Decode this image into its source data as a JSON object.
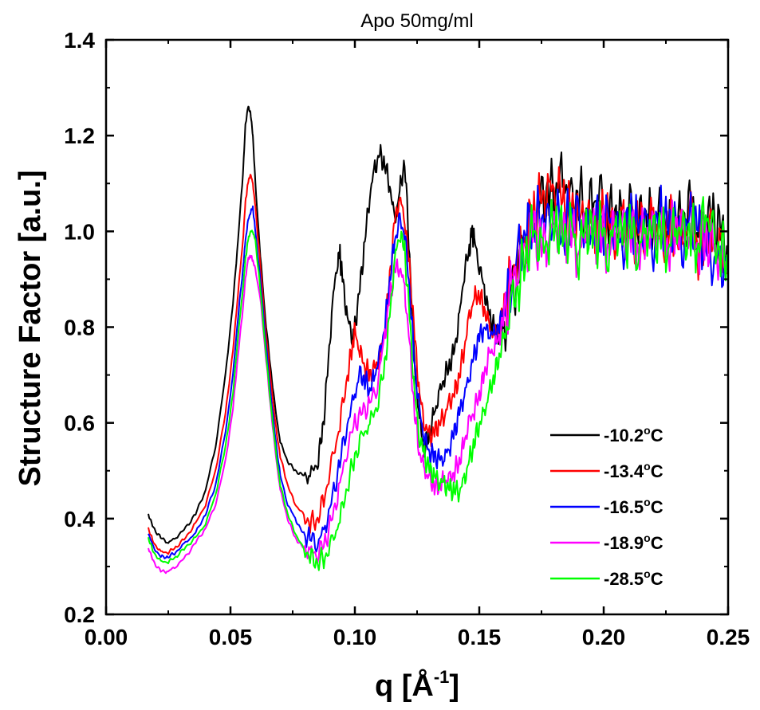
{
  "chart_data": {
    "type": "line",
    "title": "Apo 50mg/ml",
    "xlabel": {
      "base": "q [Å",
      "sup": "-1",
      "close": "]"
    },
    "ylabel": "Structure Factor [a.u.]",
    "xlim": [
      0.0,
      0.25
    ],
    "ylim": [
      0.2,
      1.4
    ],
    "xticks": [
      0.0,
      0.05,
      0.1,
      0.15,
      0.2,
      0.25
    ],
    "xtick_labels": [
      "0.00",
      "0.05",
      "0.10",
      "0.15",
      "0.20",
      "0.25"
    ],
    "yticks": [
      0.2,
      0.4,
      0.6,
      0.8,
      1.0,
      1.2,
      1.4
    ],
    "ytick_labels": [
      "0.2",
      "0.4",
      "0.6",
      "0.8",
      "1.0",
      "1.2",
      "1.4"
    ],
    "grid": false,
    "legend_position": "bottom-right",
    "series": [
      {
        "name": "-10.2°C",
        "legend": {
          "value": "-10.2",
          "unit": "C"
        },
        "color": "#000000",
        "x": [
          0.017,
          0.019,
          0.022,
          0.025,
          0.028,
          0.032,
          0.036,
          0.04,
          0.044,
          0.048,
          0.051,
          0.053,
          0.055,
          0.056,
          0.057,
          0.058,
          0.059,
          0.06,
          0.062,
          0.064,
          0.066,
          0.068,
          0.07,
          0.073,
          0.076,
          0.079,
          0.082,
          0.085,
          0.087,
          0.089,
          0.091,
          0.093,
          0.094,
          0.095,
          0.097,
          0.099,
          0.1,
          0.102,
          0.104,
          0.106,
          0.108,
          0.11,
          0.112,
          0.114,
          0.116,
          0.118,
          0.12,
          0.122,
          0.124,
          0.126,
          0.128,
          0.13,
          0.132,
          0.134,
          0.136,
          0.138,
          0.14,
          0.142,
          0.144,
          0.146,
          0.147,
          0.148,
          0.15,
          0.152,
          0.154,
          0.156,
          0.158,
          0.16,
          0.163,
          0.166,
          0.169,
          0.172,
          0.175,
          0.178,
          0.181,
          0.184,
          0.187,
          0.19,
          0.193,
          0.196,
          0.199,
          0.202,
          0.205,
          0.208,
          0.211,
          0.214,
          0.217,
          0.22,
          0.223,
          0.226,
          0.229,
          0.232,
          0.235,
          0.238,
          0.241,
          0.244,
          0.247,
          0.25
        ],
        "y": [
          0.41,
          0.38,
          0.36,
          0.35,
          0.36,
          0.38,
          0.41,
          0.46,
          0.55,
          0.7,
          0.85,
          0.98,
          1.12,
          1.22,
          1.26,
          1.25,
          1.2,
          1.1,
          0.95,
          0.82,
          0.72,
          0.63,
          0.56,
          0.52,
          0.5,
          0.49,
          0.49,
          0.52,
          0.58,
          0.7,
          0.85,
          0.94,
          0.95,
          0.9,
          0.82,
          0.78,
          0.8,
          0.88,
          0.98,
          1.08,
          1.13,
          1.16,
          1.14,
          1.1,
          1.02,
          1.08,
          1.15,
          0.95,
          0.72,
          0.6,
          0.55,
          0.58,
          0.62,
          0.66,
          0.7,
          0.72,
          0.75,
          0.82,
          0.92,
          0.96,
          1.0,
          0.98,
          0.93,
          0.88,
          0.82,
          0.8,
          0.78,
          0.8,
          0.86,
          0.92,
          0.98,
          1.02,
          1.06,
          1.08,
          1.1,
          1.12,
          1.05,
          1.08,
          1.04,
          1.07,
          1.06,
          1.03,
          1.05,
          1.0,
          1.04,
          1.02,
          1.05,
          1.0,
          1.03,
          1.02,
          1.05,
          1.0,
          1.06,
          1.0,
          1.04,
          1.02,
          1.0,
          0.96
        ]
      },
      {
        "name": "-13.4°C",
        "legend": {
          "value": "-13.4",
          "unit": "C"
        },
        "color": "#ff0000",
        "x": [
          0.017,
          0.019,
          0.022,
          0.025,
          0.028,
          0.032,
          0.036,
          0.04,
          0.044,
          0.048,
          0.051,
          0.053,
          0.055,
          0.056,
          0.057,
          0.058,
          0.059,
          0.06,
          0.062,
          0.064,
          0.066,
          0.068,
          0.07,
          0.073,
          0.076,
          0.079,
          0.082,
          0.085,
          0.088,
          0.091,
          0.094,
          0.097,
          0.099,
          0.1,
          0.102,
          0.104,
          0.106,
          0.108,
          0.11,
          0.112,
          0.114,
          0.116,
          0.118,
          0.12,
          0.122,
          0.124,
          0.126,
          0.128,
          0.13,
          0.132,
          0.134,
          0.136,
          0.138,
          0.14,
          0.142,
          0.144,
          0.146,
          0.148,
          0.15,
          0.152,
          0.154,
          0.156,
          0.158,
          0.16,
          0.163,
          0.166,
          0.169,
          0.172,
          0.175,
          0.178,
          0.181,
          0.184,
          0.187,
          0.19,
          0.193,
          0.196,
          0.199,
          0.202,
          0.205,
          0.208,
          0.211,
          0.214,
          0.217,
          0.22,
          0.223,
          0.226,
          0.229,
          0.232,
          0.235,
          0.238,
          0.241,
          0.244,
          0.247,
          0.25
        ],
        "y": [
          0.38,
          0.35,
          0.33,
          0.33,
          0.34,
          0.36,
          0.39,
          0.43,
          0.5,
          0.62,
          0.75,
          0.87,
          0.98,
          1.06,
          1.1,
          1.12,
          1.1,
          1.05,
          0.93,
          0.8,
          0.7,
          0.6,
          0.53,
          0.47,
          0.43,
          0.41,
          0.39,
          0.4,
          0.45,
          0.52,
          0.6,
          0.7,
          0.76,
          0.79,
          0.75,
          0.72,
          0.7,
          0.71,
          0.74,
          0.8,
          0.9,
          1.02,
          1.07,
          1.03,
          0.92,
          0.78,
          0.66,
          0.6,
          0.57,
          0.58,
          0.6,
          0.62,
          0.64,
          0.66,
          0.7,
          0.76,
          0.82,
          0.86,
          0.87,
          0.84,
          0.8,
          0.78,
          0.8,
          0.84,
          0.9,
          0.96,
          1.0,
          1.04,
          1.06,
          1.08,
          1.1,
          1.06,
          1.04,
          1.02,
          1.05,
          1.0,
          1.03,
          1.02,
          1.0,
          1.04,
          0.98,
          1.02,
          1.0,
          1.04,
          0.96,
          1.02,
          1.0,
          0.98,
          1.03,
          0.96,
          1.0,
          0.98,
          0.95,
          0.92
        ]
      },
      {
        "name": "-16.5°C",
        "legend": {
          "value": "-16.5",
          "unit": "C"
        },
        "color": "#0000ff",
        "x": [
          0.017,
          0.019,
          0.022,
          0.025,
          0.028,
          0.032,
          0.036,
          0.04,
          0.044,
          0.048,
          0.051,
          0.053,
          0.055,
          0.056,
          0.057,
          0.058,
          0.059,
          0.06,
          0.062,
          0.064,
          0.066,
          0.068,
          0.07,
          0.073,
          0.076,
          0.079,
          0.082,
          0.085,
          0.088,
          0.091,
          0.094,
          0.097,
          0.1,
          0.102,
          0.104,
          0.106,
          0.108,
          0.11,
          0.112,
          0.114,
          0.116,
          0.118,
          0.12,
          0.122,
          0.124,
          0.126,
          0.128,
          0.13,
          0.132,
          0.134,
          0.136,
          0.138,
          0.14,
          0.142,
          0.144,
          0.146,
          0.148,
          0.15,
          0.152,
          0.154,
          0.156,
          0.158,
          0.16,
          0.163,
          0.166,
          0.169,
          0.172,
          0.175,
          0.178,
          0.181,
          0.184,
          0.187,
          0.19,
          0.193,
          0.196,
          0.199,
          0.202,
          0.205,
          0.208,
          0.211,
          0.214,
          0.217,
          0.22,
          0.223,
          0.226,
          0.229,
          0.232,
          0.235,
          0.238,
          0.241,
          0.244,
          0.247,
          0.25
        ],
        "y": [
          0.37,
          0.34,
          0.32,
          0.32,
          0.33,
          0.35,
          0.37,
          0.41,
          0.47,
          0.58,
          0.7,
          0.82,
          0.92,
          0.98,
          1.02,
          1.04,
          1.05,
          1.0,
          0.9,
          0.78,
          0.67,
          0.57,
          0.49,
          0.43,
          0.4,
          0.37,
          0.36,
          0.35,
          0.38,
          0.44,
          0.52,
          0.6,
          0.66,
          0.7,
          0.69,
          0.67,
          0.7,
          0.74,
          0.8,
          0.9,
          0.98,
          1.02,
          1.0,
          0.88,
          0.72,
          0.62,
          0.57,
          0.54,
          0.53,
          0.52,
          0.53,
          0.55,
          0.58,
          0.62,
          0.66,
          0.7,
          0.74,
          0.78,
          0.8,
          0.79,
          0.78,
          0.8,
          0.84,
          0.9,
          0.95,
          1.0,
          1.02,
          1.04,
          1.0,
          1.03,
          1.0,
          1.04,
          1.02,
          0.98,
          1.03,
          1.0,
          1.02,
          1.0,
          0.98,
          1.03,
          1.0,
          1.02,
          0.98,
          1.04,
          1.0,
          1.02,
          0.98,
          1.03,
          1.0,
          0.97,
          0.95,
          0.93,
          0.92
        ]
      },
      {
        "name": "-18.9°C",
        "legend": {
          "value": "-18.9",
          "unit": "C"
        },
        "color": "#ff00ff",
        "x": [
          0.017,
          0.019,
          0.022,
          0.025,
          0.028,
          0.032,
          0.036,
          0.04,
          0.044,
          0.048,
          0.051,
          0.053,
          0.055,
          0.056,
          0.057,
          0.058,
          0.059,
          0.06,
          0.062,
          0.064,
          0.066,
          0.068,
          0.07,
          0.073,
          0.076,
          0.079,
          0.082,
          0.085,
          0.088,
          0.091,
          0.094,
          0.097,
          0.1,
          0.103,
          0.106,
          0.109,
          0.112,
          0.114,
          0.116,
          0.118,
          0.12,
          0.122,
          0.124,
          0.126,
          0.128,
          0.13,
          0.132,
          0.134,
          0.136,
          0.138,
          0.14,
          0.142,
          0.144,
          0.146,
          0.148,
          0.15,
          0.152,
          0.154,
          0.156,
          0.158,
          0.16,
          0.163,
          0.166,
          0.169,
          0.172,
          0.175,
          0.178,
          0.181,
          0.184,
          0.187,
          0.19,
          0.193,
          0.196,
          0.199,
          0.202,
          0.205,
          0.208,
          0.211,
          0.214,
          0.217,
          0.22,
          0.223,
          0.226,
          0.229,
          0.232,
          0.235,
          0.238,
          0.241,
          0.244,
          0.247,
          0.25
        ],
        "y": [
          0.34,
          0.31,
          0.29,
          0.29,
          0.3,
          0.32,
          0.35,
          0.38,
          0.43,
          0.52,
          0.63,
          0.74,
          0.84,
          0.9,
          0.94,
          0.95,
          0.94,
          0.92,
          0.86,
          0.75,
          0.64,
          0.54,
          0.46,
          0.4,
          0.36,
          0.34,
          0.33,
          0.33,
          0.35,
          0.4,
          0.47,
          0.55,
          0.6,
          0.62,
          0.64,
          0.68,
          0.78,
          0.86,
          0.92,
          0.93,
          0.88,
          0.76,
          0.62,
          0.54,
          0.5,
          0.48,
          0.47,
          0.47,
          0.48,
          0.48,
          0.5,
          0.52,
          0.56,
          0.6,
          0.63,
          0.66,
          0.7,
          0.74,
          0.76,
          0.78,
          0.82,
          0.88,
          0.94,
          0.98,
          1.0,
          0.96,
          1.0,
          1.02,
          0.98,
          1.0,
          0.96,
          1.02,
          0.98,
          1.0,
          0.97,
          1.02,
          0.98,
          1.0,
          0.96,
          1.01,
          0.98,
          1.0,
          0.97,
          1.02,
          0.98,
          1.0,
          0.97,
          0.99,
          0.96,
          0.94,
          0.93
        ]
      },
      {
        "name": "-28.5°C",
        "legend": {
          "value": "-28.5",
          "unit": "C"
        },
        "color": "#00ff00",
        "x": [
          0.017,
          0.019,
          0.022,
          0.025,
          0.028,
          0.032,
          0.036,
          0.04,
          0.044,
          0.048,
          0.051,
          0.053,
          0.055,
          0.056,
          0.057,
          0.058,
          0.059,
          0.06,
          0.062,
          0.064,
          0.066,
          0.068,
          0.07,
          0.073,
          0.076,
          0.079,
          0.082,
          0.085,
          0.088,
          0.091,
          0.094,
          0.097,
          0.1,
          0.103,
          0.106,
          0.109,
          0.112,
          0.114,
          0.116,
          0.118,
          0.12,
          0.122,
          0.124,
          0.126,
          0.128,
          0.13,
          0.132,
          0.134,
          0.136,
          0.138,
          0.14,
          0.142,
          0.144,
          0.146,
          0.148,
          0.15,
          0.152,
          0.154,
          0.156,
          0.158,
          0.16,
          0.163,
          0.166,
          0.169,
          0.172,
          0.175,
          0.178,
          0.181,
          0.184,
          0.187,
          0.19,
          0.193,
          0.196,
          0.199,
          0.202,
          0.205,
          0.208,
          0.211,
          0.214,
          0.217,
          0.22,
          0.223,
          0.226,
          0.229,
          0.232,
          0.235,
          0.238,
          0.241,
          0.244,
          0.247,
          0.25
        ],
        "y": [
          0.36,
          0.33,
          0.31,
          0.31,
          0.32,
          0.34,
          0.36,
          0.39,
          0.45,
          0.55,
          0.66,
          0.78,
          0.88,
          0.94,
          0.98,
          1.0,
          1.0,
          0.98,
          0.88,
          0.76,
          0.65,
          0.55,
          0.47,
          0.41,
          0.37,
          0.34,
          0.32,
          0.31,
          0.32,
          0.35,
          0.4,
          0.47,
          0.53,
          0.57,
          0.6,
          0.64,
          0.72,
          0.82,
          0.94,
          1.0,
          0.96,
          0.82,
          0.66,
          0.57,
          0.53,
          0.5,
          0.49,
          0.48,
          0.47,
          0.46,
          0.46,
          0.46,
          0.48,
          0.52,
          0.56,
          0.6,
          0.62,
          0.66,
          0.7,
          0.74,
          0.78,
          0.84,
          0.9,
          0.96,
          1.0,
          0.95,
          1.0,
          1.02,
          0.98,
          1.0,
          0.96,
          1.02,
          0.98,
          1.0,
          0.96,
          1.02,
          0.98,
          1.0,
          0.96,
          1.01,
          0.98,
          1.0,
          0.97,
          1.02,
          0.98,
          1.0,
          0.97,
          1.05,
          0.98,
          0.96,
          0.95
        ]
      }
    ]
  }
}
